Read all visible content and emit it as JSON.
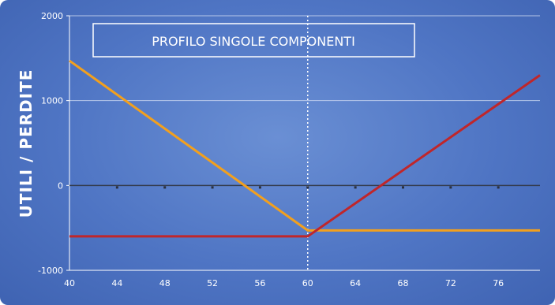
{
  "chart_data": {
    "type": "line",
    "title": "PROFILO SINGOLE COMPONENTI",
    "xlabel": "",
    "ylabel": "UTILI / PERDITE",
    "xlim": [
      40,
      79.5
    ],
    "ylim": [
      -1000,
      2000
    ],
    "xticks": [
      40,
      44,
      48,
      52,
      56,
      60,
      64,
      68,
      72,
      76
    ],
    "yticks": [
      -1000,
      0,
      1000,
      2000
    ],
    "grid": true,
    "reference_line_x": 60,
    "series": [
      {
        "color": "#f2a01e",
        "x": [
          40,
          60,
          79.5
        ],
        "y": [
          1470,
          -530,
          -530
        ]
      },
      {
        "color": "#c0262a",
        "x": [
          40,
          60,
          79.5
        ],
        "y": [
          -600,
          -600,
          1300
        ]
      }
    ]
  }
}
